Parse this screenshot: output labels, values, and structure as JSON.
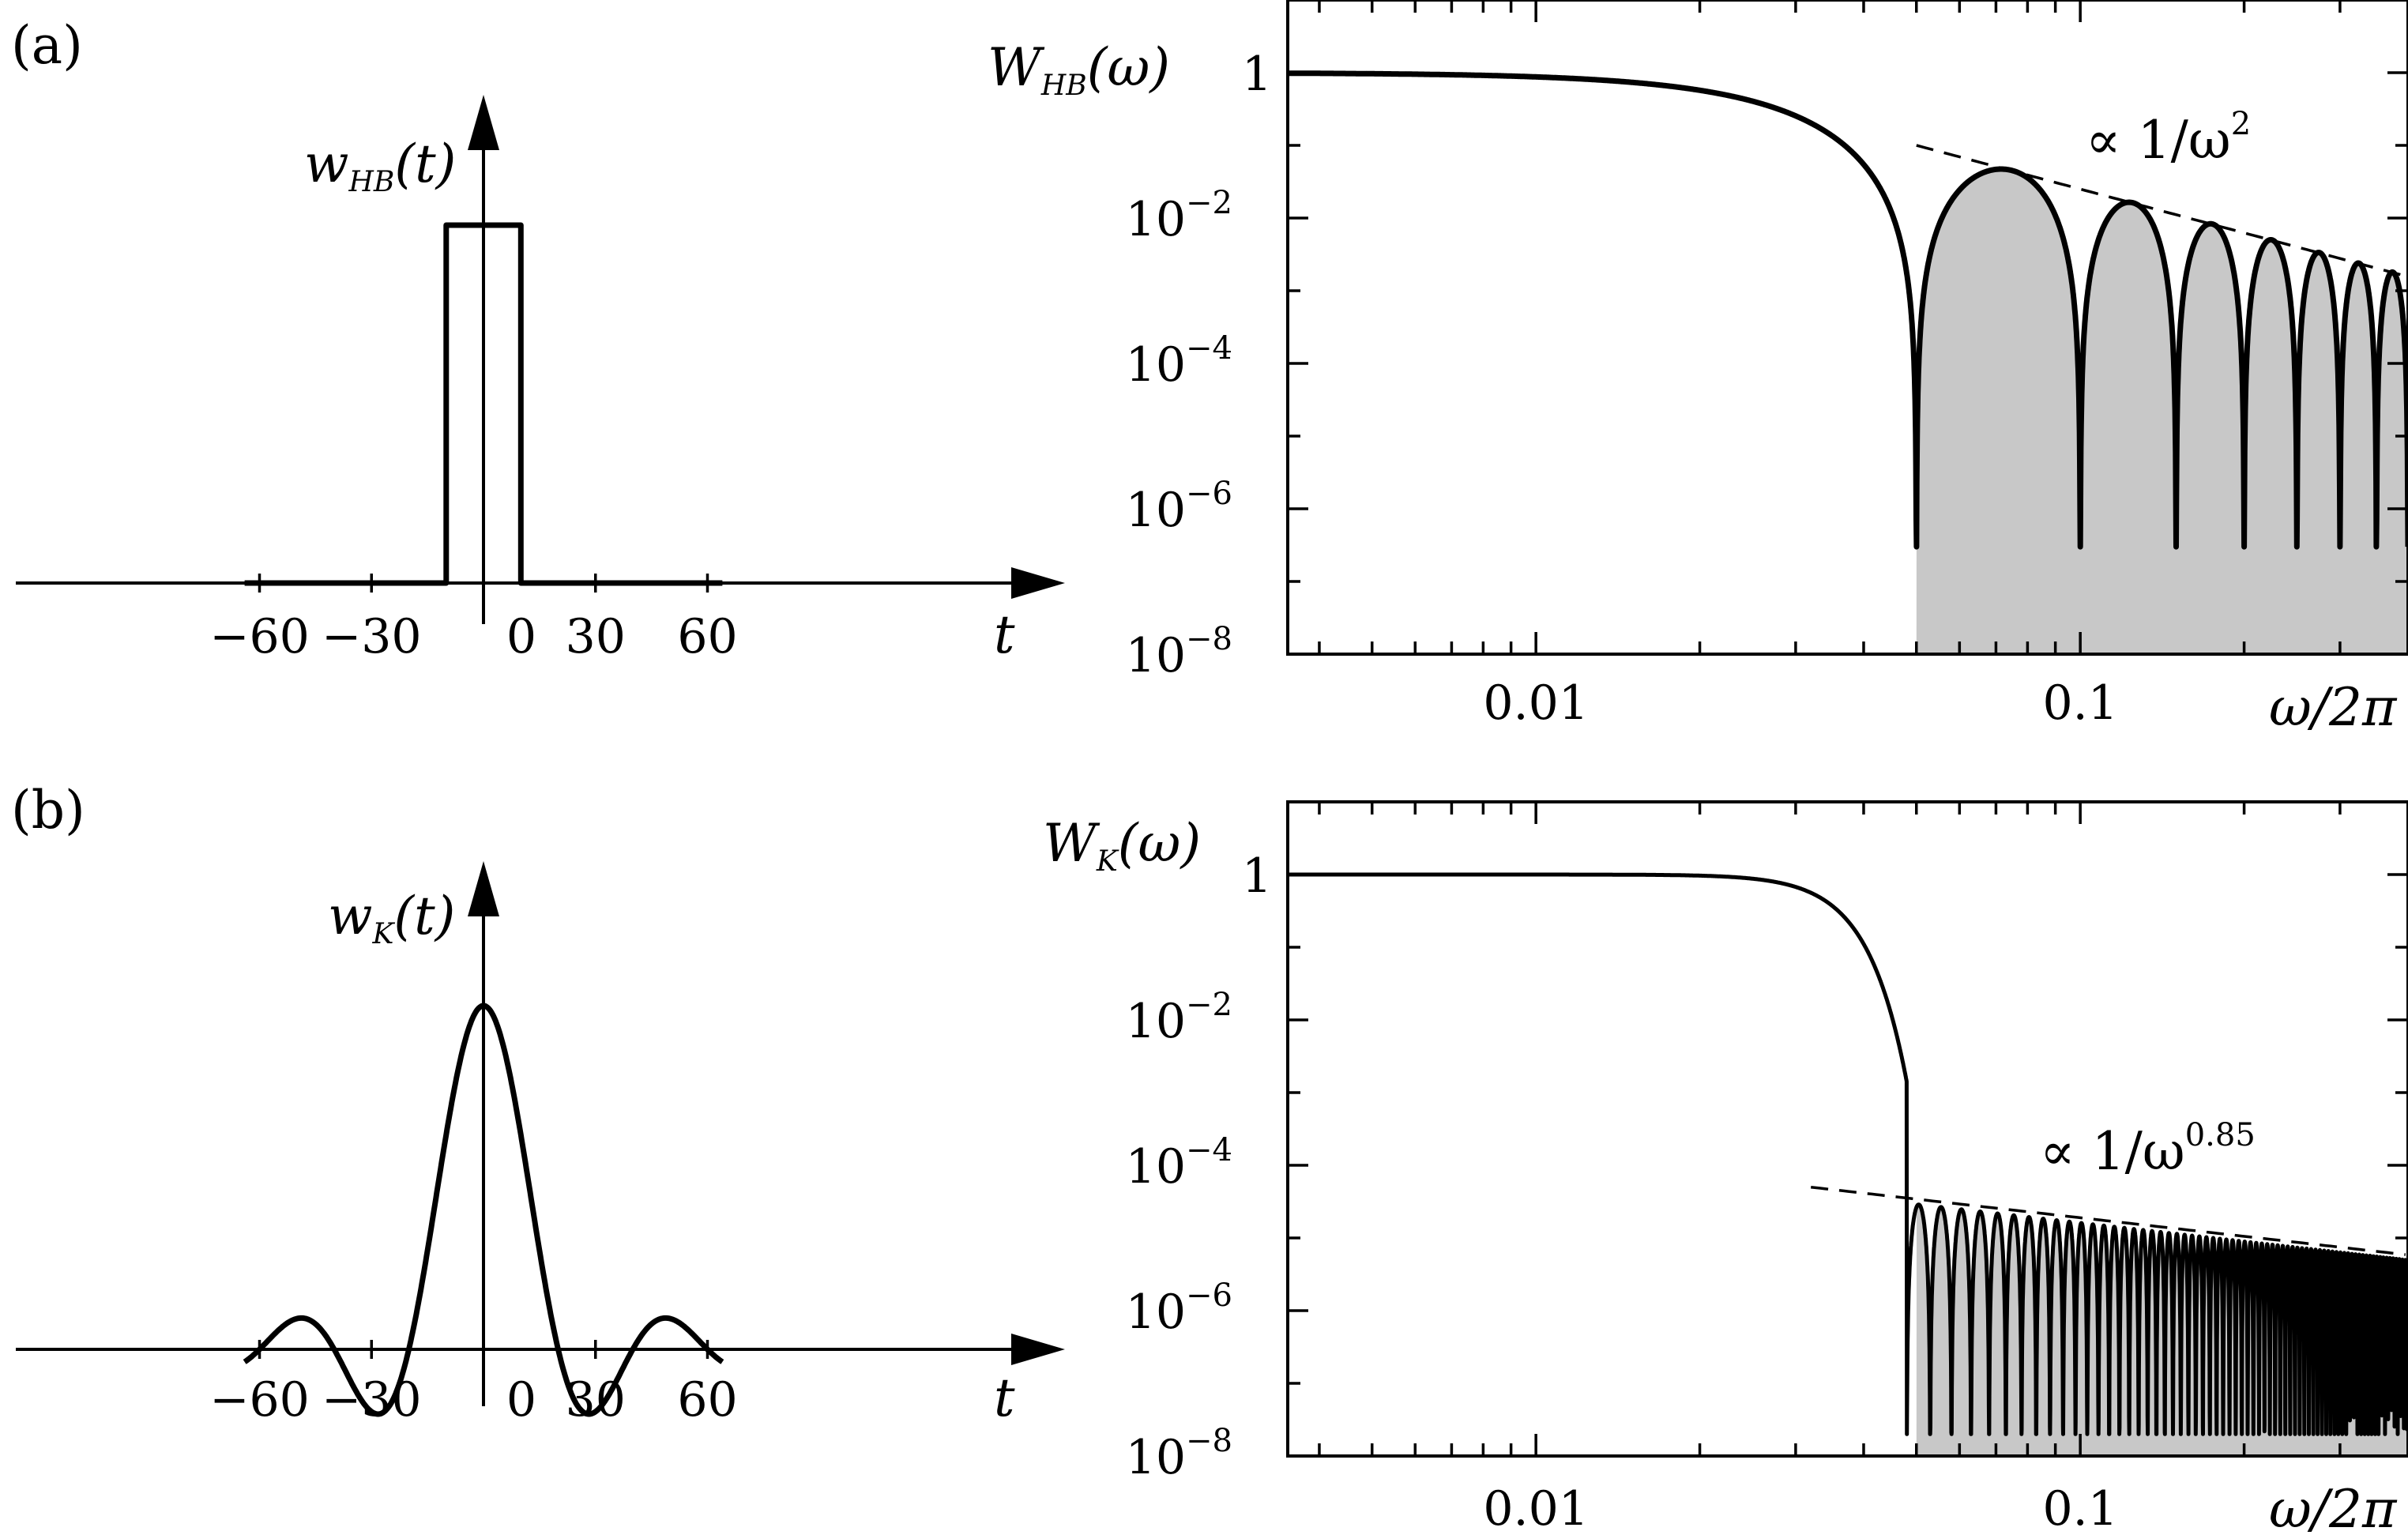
{
  "chart_data": [
    {
      "panel": "(a)",
      "type": "line",
      "ylabel": {
        "prefix": "w",
        "sub": "HB",
        "suffix": "(t)"
      },
      "xlabel": "t",
      "xticks": [
        "−60",
        "−30",
        "0",
        "30",
        "60"
      ],
      "xtick_values": [
        -60,
        -30,
        0,
        30,
        60
      ],
      "xlim": [
        -64,
        76
      ],
      "ylim": [
        -0.12,
        1.2
      ],
      "window": "rectangular",
      "x": [
        -64,
        -10,
        -10,
        10,
        10,
        64
      ],
      "y": [
        0,
        0,
        1,
        1,
        0,
        0
      ]
    },
    {
      "panel": "(a)",
      "type": "line",
      "yscale": "log",
      "xscale": "log",
      "ylabel": {
        "prefix": "W",
        "sub": "HB",
        "suffix": "(ω)"
      },
      "xlabel": "ω/2π",
      "yticks": [
        {
          "base": "1",
          "exp": ""
        },
        {
          "base": "10",
          "exp": "−2"
        },
        {
          "base": "10",
          "exp": "−4"
        },
        {
          "base": "10",
          "exp": "−6"
        },
        {
          "base": "10",
          "exp": "−8"
        }
      ],
      "ytick_values": [
        1,
        0.01,
        0.0001,
        1e-06,
        1e-08
      ],
      "xticks": [
        "0.01",
        "0.1"
      ],
      "xtick_values": [
        0.01,
        0.1
      ],
      "xlim": [
        0.0035,
        0.4
      ],
      "ylim": [
        1e-08,
        10
      ],
      "shaded_from": 0.05,
      "first_zero": 0.05,
      "envelope": {
        "label": {
          "prefix": "∝ 1/ω",
          "exp": "2"
        },
        "power": 2,
        "from": 0.05,
        "at_from": 0.1
      },
      "series": [
        {
          "kind": "sinc2",
          "zero_spacing": 0.05
        }
      ]
    },
    {
      "panel": "(b)",
      "type": "line",
      "ylabel": {
        "prefix": "w",
        "sub": "K",
        "suffix": "(t)"
      },
      "xlabel": "t",
      "xticks": [
        "−60",
        "−30",
        "0",
        "30",
        "60"
      ],
      "xtick_values": [
        -60,
        -30,
        0,
        30,
        60
      ],
      "xlim": [
        -64,
        76
      ],
      "ylim": [
        -0.15,
        1.2
      ],
      "window": "kernel",
      "main_lobe_peak": 1,
      "main_lobe_center": 0,
      "main_lobe_zeros": [
        -20,
        20
      ],
      "min_at": [
        -27,
        27
      ],
      "min_value": -0.1,
      "side_lobe_peak_at": [
        -47,
        47
      ],
      "side_lobe_value": 0.02
    },
    {
      "panel": "(b)",
      "type": "line",
      "yscale": "log",
      "xscale": "log",
      "ylabel": {
        "prefix": "W",
        "sub": "K",
        "suffix": "(ω)"
      },
      "xlabel": "ω/2π",
      "yticks": [
        {
          "base": "1",
          "exp": ""
        },
        {
          "base": "10",
          "exp": "−2"
        },
        {
          "base": "10",
          "exp": "−4"
        },
        {
          "base": "10",
          "exp": "−6"
        },
        {
          "base": "10",
          "exp": "−8"
        }
      ],
      "ytick_values": [
        1,
        0.01,
        0.0001,
        1e-06,
        1e-08
      ],
      "xticks": [
        "0.01",
        "0.1"
      ],
      "xtick_values": [
        0.01,
        0.1
      ],
      "xlim": [
        0.0035,
        0.4
      ],
      "ylim": [
        1e-08,
        10
      ],
      "shaded_from": 0.05,
      "first_zero": 0.048,
      "zero_spacing": 0.005,
      "envelope": {
        "label": {
          "prefix": "∝ 1/ω",
          "exp": "0.85"
        },
        "power": 0.85,
        "from": 0.032,
        "at_from": 5e-05
      },
      "series": [
        {
          "kind": "kernel-spectrum"
        }
      ]
    }
  ]
}
